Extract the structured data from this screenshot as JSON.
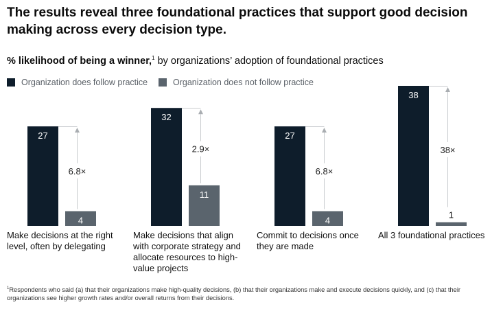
{
  "title": "The results reveal three foundational practices that support good decision making across every decision type.",
  "subtitle": {
    "bold": "% likelihood of being a winner,",
    "mark": "1",
    "rest": " by organizations’ adoption of foundational practices"
  },
  "legend": [
    {
      "label": "Organization does follow practice",
      "color": "#0e1d2b"
    },
    {
      "label": "Organization does not follow practice",
      "color": "#5a646d"
    }
  ],
  "footnote": {
    "mark": "1",
    "text": "Respondents who said (a) that their organizations make high-quality decisions, (b) that their organizations make and execute decisions quickly, and (c) that their organizations see higher growth rates and/or overall returns from their decisions."
  },
  "chart_data": {
    "type": "bar",
    "title": "% likelihood of being a winner, by organizations’ adoption of foundational practices",
    "ylabel": "% likelihood of being a winner",
    "ylim": [
      0,
      38
    ],
    "categories": [
      "Make decisions at the right level, often by delegating",
      "Make decisions that align with corporate strategy and allocate resources to high-value projects",
      "Commit to decisions once they are made",
      "All 3 foundational practices"
    ],
    "series": [
      {
        "name": "Organization does follow practice",
        "color": "#0e1d2b",
        "values": [
          27,
          32,
          27,
          38
        ]
      },
      {
        "name": "Organization does not follow practice",
        "color": "#5a646d",
        "values": [
          4,
          11,
          4,
          1
        ]
      }
    ],
    "multipliers": [
      "6.8×",
      "2.9×",
      "6.8×",
      "38×"
    ]
  }
}
